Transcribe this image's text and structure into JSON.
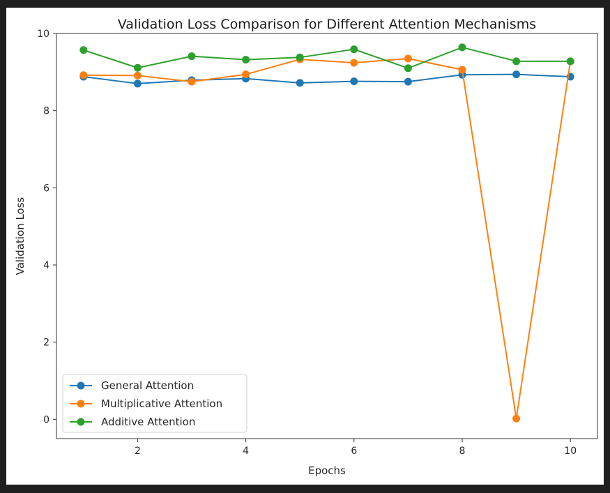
{
  "chart_data": {
    "type": "line",
    "title": "Validation Loss Comparison for Different Attention Mechanisms",
    "xlabel": "Epochs",
    "ylabel": "Validation Loss",
    "x": [
      1,
      2,
      3,
      4,
      5,
      6,
      7,
      8,
      9,
      10
    ],
    "xlim": [
      0.5,
      10.5
    ],
    "ylim": [
      -0.5,
      10.0
    ],
    "xticks": [
      2,
      4,
      6,
      8,
      10
    ],
    "yticks": [
      0,
      2,
      4,
      6,
      8,
      10
    ],
    "grid": false,
    "legend_position": "lower-left",
    "series": [
      {
        "name": "General Attention",
        "color": "#1f77b4",
        "marker": "circle",
        "values": [
          8.88,
          8.7,
          8.79,
          8.83,
          8.72,
          8.76,
          8.75,
          8.93,
          8.94,
          8.88
        ]
      },
      {
        "name": "Multiplicative Attention",
        "color": "#ff7f0e",
        "marker": "circle",
        "values": [
          8.92,
          8.91,
          8.75,
          8.94,
          9.33,
          9.24,
          9.35,
          9.06,
          0.02,
          9.28
        ]
      },
      {
        "name": "Additive Attention",
        "color": "#2ca02c",
        "marker": "circle",
        "values": [
          9.57,
          9.11,
          9.41,
          9.32,
          9.38,
          9.59,
          9.1,
          9.64,
          9.28,
          9.28
        ]
      }
    ]
  }
}
